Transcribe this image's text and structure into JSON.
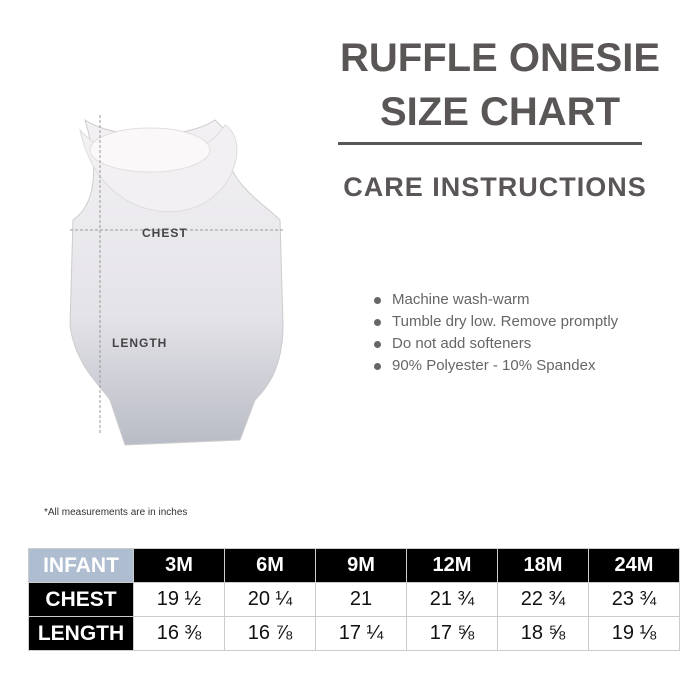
{
  "title": {
    "line1": "RUFFLE ONESIE",
    "line2": "SIZE CHART"
  },
  "care": {
    "heading": "CARE INSTRUCTIONS",
    "items": [
      "Machine wash-warm",
      "Tumble dry low. Remove promptly",
      "Do not add softeners",
      "90% Polyester - 10% Spandex"
    ]
  },
  "garment": {
    "chest_label": "CHEST",
    "length_label": "LENGTH"
  },
  "note": "*All measurements are in inches",
  "table": {
    "corner": "INFANT",
    "sizes": [
      "3M",
      "6M",
      "9M",
      "12M",
      "18M",
      "24M"
    ],
    "rows": [
      {
        "label": "CHEST",
        "values": [
          "19 ½",
          "20 ¼",
          "21",
          "21 ¾",
          "22 ¾",
          "23 ¾"
        ]
      },
      {
        "label": "LENGTH",
        "values": [
          "16 ⅜",
          "16 ⅞",
          "17 ¼",
          "17 ⅝",
          "18 ⅝",
          "19 ⅛"
        ]
      }
    ]
  },
  "colors": {
    "heading": "#5a5656",
    "corner": "#aebdd0"
  }
}
